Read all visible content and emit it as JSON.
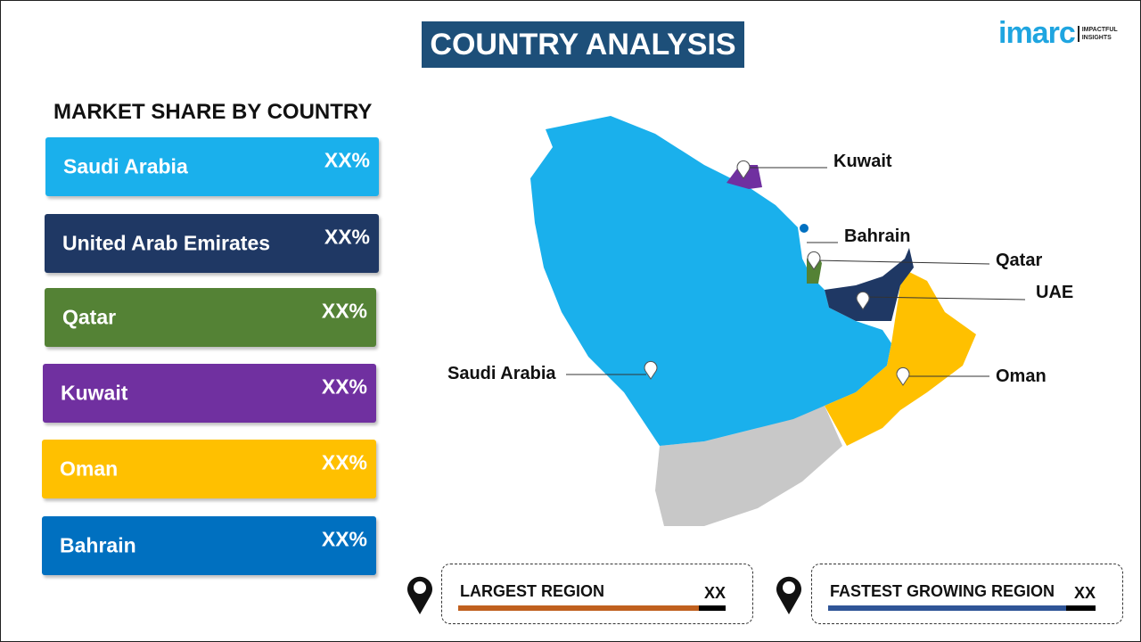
{
  "header": {
    "title": "COUNTRY ANALYSIS",
    "logo_text": "imarc",
    "logo_tagline": "IMPACTFUL INSIGHTS"
  },
  "left": {
    "subtitle": "MARKET SHARE BY COUNTRY",
    "items": [
      {
        "name": "Saudi Arabia",
        "value": "XX%",
        "color": "#1ab0ec"
      },
      {
        "name": "United Arab Emirates",
        "value": "XX%",
        "color": "#1f3864"
      },
      {
        "name": "Qatar",
        "value": "XX%",
        "color": "#548235"
      },
      {
        "name": "Kuwait",
        "value": "XX%",
        "color": "#7030a0"
      },
      {
        "name": "Oman",
        "value": "XX%",
        "color": "#ffc000"
      },
      {
        "name": "Bahrain",
        "value": "XX%",
        "color": "#0070c0"
      }
    ]
  },
  "map": {
    "labels": {
      "kuwait": "Kuwait",
      "bahrain": "Bahrain",
      "qatar": "Qatar",
      "uae": "UAE",
      "saudi": "Saudi Arabia",
      "oman": "Oman"
    }
  },
  "footer": {
    "largest": {
      "label": "LARGEST REGION",
      "value": "XX",
      "color": "#c0601e",
      "fill": 0.9
    },
    "fastest": {
      "label": "FASTEST GROWING REGION",
      "value": "XX",
      "color": "#2f5597",
      "fill": 0.89
    }
  }
}
